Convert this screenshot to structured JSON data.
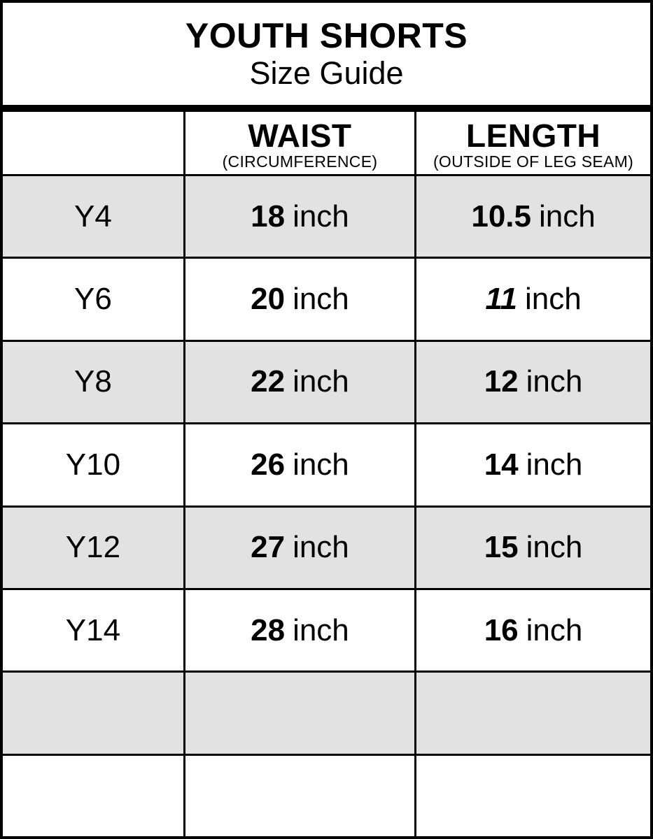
{
  "title": {
    "line1": "YOUTH SHORTS",
    "line2": "Size Guide"
  },
  "table": {
    "columns": [
      {
        "label": "",
        "sublabel": ""
      },
      {
        "label": "WAIST",
        "sublabel": "(CIRCUMFERENCE)"
      },
      {
        "label": "LENGTH",
        "sublabel": "(OUTSIDE OF LEG SEAM)"
      }
    ],
    "unit": "inch",
    "rows": [
      {
        "size": "Y4",
        "waist": "18",
        "length": "10.5",
        "length_style": "normal"
      },
      {
        "size": "Y6",
        "waist": "20",
        "length": "11",
        "length_style": "italic"
      },
      {
        "size": "Y8",
        "waist": "22",
        "length": "12",
        "length_style": "normal"
      },
      {
        "size": "Y10",
        "waist": "26",
        "length": "14",
        "length_style": "normal"
      },
      {
        "size": "Y12",
        "waist": "27",
        "length": "15",
        "length_style": "normal"
      },
      {
        "size": "Y14",
        "waist": "28",
        "length": "16",
        "length_style": "normal"
      },
      {
        "size": "",
        "waist": "",
        "length": "",
        "length_style": "normal"
      },
      {
        "size": "",
        "waist": "",
        "length": "",
        "length_style": "normal"
      }
    ]
  },
  "colors": {
    "row_alt_background": "#e2e2e2",
    "border": "#000000",
    "background": "#ffffff",
    "text": "#000000"
  }
}
